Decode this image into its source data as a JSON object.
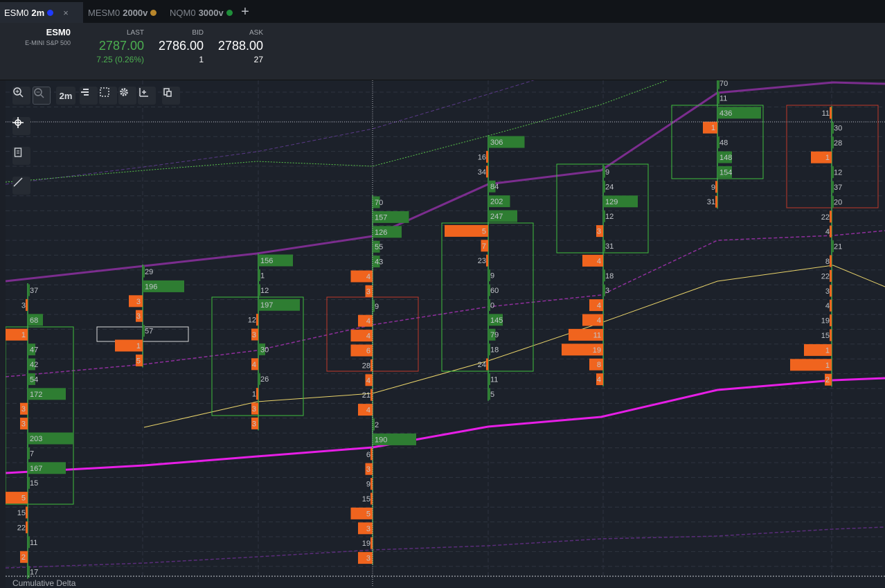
{
  "tabs": [
    {
      "symbol": "ESM0",
      "resolution": "2m",
      "dot_color": "#1f3bff",
      "active": true,
      "close": "×"
    },
    {
      "symbol": "MESM0",
      "resolution": "2000v",
      "dot_color": "#b8862b",
      "active": false
    },
    {
      "symbol": "NQM0",
      "resolution": "3000v",
      "dot_color": "#1f8f3a",
      "active": false
    }
  ],
  "new_tab_label": "+",
  "quote": {
    "symbol": "ESM0",
    "description": "E-MINI S&P 500",
    "last_label": "LAST",
    "last": "2787.00",
    "change": "7.25 (0.26%)",
    "bid_label": "BID",
    "bid": "2786.00",
    "bid_size": "1",
    "ask_label": "ASK",
    "ask": "2788.00",
    "ask_size": "27"
  },
  "toolbar": {
    "timeframe_label": "2m"
  },
  "colors": {
    "buy": "#2e7d32",
    "sell": "#f0641e",
    "up": "#4caf50",
    "accent_magenta": "#e61ee6",
    "vwap": "#7b2d8e"
  },
  "study_label": "Cumulative Delta",
  "chart_data": {
    "type": "footprint",
    "columns": [
      {
        "rows": [
          [
            "37",
            0,
            0
          ],
          [
            "3",
            1,
            0
          ],
          [
            "68",
            0,
            2
          ],
          [
            "1",
            1,
            3
          ],
          [
            "47",
            0,
            1
          ],
          [
            "42",
            0,
            1
          ],
          [
            "54",
            0,
            1
          ],
          [
            "172",
            0,
            5
          ],
          [
            "3",
            1,
            1
          ],
          [
            "3",
            1,
            1
          ],
          [
            "203",
            0,
            6
          ],
          [
            "7",
            0,
            0
          ],
          [
            "167",
            0,
            5
          ],
          [
            "15",
            0,
            0
          ],
          [
            "5",
            1,
            3
          ],
          [
            "15",
            1,
            0
          ],
          [
            "22",
            1,
            0
          ],
          [
            "11",
            0,
            0
          ],
          [
            "2",
            1,
            1
          ],
          [
            "17",
            0,
            0
          ]
        ]
      },
      {
        "rows": [
          [
            "29",
            0,
            0
          ],
          [
            "196",
            0,
            6
          ],
          [
            "3",
            1,
            2
          ],
          [
            "3",
            1,
            1
          ],
          [
            "57",
            0,
            0
          ],
          [
            "1",
            1,
            4
          ],
          [
            "5",
            1,
            1
          ]
        ]
      },
      {
        "rows": [
          [
            "156",
            0,
            5
          ],
          [
            "1",
            0,
            0
          ],
          [
            "12",
            0,
            0
          ],
          [
            "197",
            0,
            6
          ],
          [
            "12",
            1,
            0
          ],
          [
            "3",
            1,
            1
          ],
          [
            "30",
            0,
            1
          ],
          [
            "4",
            1,
            1
          ],
          [
            "26",
            0,
            0
          ],
          [
            "1",
            1,
            0
          ],
          [
            "3",
            1,
            1
          ],
          [
            "3",
            1,
            1
          ]
        ]
      },
      {
        "rows": [
          [
            "70",
            0,
            1
          ],
          [
            "157",
            0,
            5
          ],
          [
            "126",
            0,
            4
          ],
          [
            "55",
            0,
            1
          ],
          [
            "43",
            0,
            1
          ],
          [
            "4",
            1,
            3
          ],
          [
            "3",
            1,
            1
          ],
          [
            "9",
            0,
            0
          ],
          [
            "4",
            1,
            2
          ],
          [
            "4",
            1,
            3
          ],
          [
            "6",
            1,
            3
          ],
          [
            "28",
            1,
            0
          ],
          [
            "4",
            1,
            1
          ],
          [
            "21",
            1,
            0
          ],
          [
            "4",
            1,
            2
          ],
          [
            "2",
            0,
            0
          ],
          [
            "190",
            0,
            6
          ],
          [
            "6",
            1,
            0
          ],
          [
            "3",
            1,
            1
          ],
          [
            "9",
            1,
            0
          ],
          [
            "15",
            1,
            0
          ],
          [
            "5",
            1,
            3
          ],
          [
            "3",
            1,
            2
          ],
          [
            "19",
            1,
            0
          ],
          [
            "3",
            1,
            2
          ]
        ]
      },
      {
        "rows": [
          [
            "306",
            0,
            5
          ],
          [
            "16",
            1,
            0
          ],
          [
            "34",
            1,
            0
          ],
          [
            "84",
            0,
            1
          ],
          [
            "202",
            0,
            3
          ],
          [
            "247",
            0,
            4
          ],
          [
            "5",
            1,
            6
          ],
          [
            "7",
            1,
            1
          ],
          [
            "23",
            1,
            0
          ],
          [
            "9",
            0,
            0
          ],
          [
            "60",
            0,
            0
          ],
          [
            "0",
            0,
            0
          ],
          [
            "145",
            0,
            2
          ],
          [
            "79",
            0,
            1
          ],
          [
            "18",
            0,
            0
          ],
          [
            "24",
            1,
            0
          ],
          [
            "11",
            0,
            0
          ],
          [
            "5",
            0,
            0
          ]
        ]
      },
      {
        "rows": [
          [
            "9",
            0,
            0
          ],
          [
            "24",
            0,
            0
          ],
          [
            "129",
            0,
            5
          ],
          [
            "12",
            0,
            0
          ],
          [
            "3",
            1,
            1
          ],
          [
            "31",
            0,
            0
          ],
          [
            "4",
            1,
            3
          ],
          [
            "18",
            0,
            0
          ],
          [
            "3",
            0,
            0
          ],
          [
            "4",
            1,
            2
          ],
          [
            "4",
            1,
            3
          ],
          [
            "11",
            1,
            5
          ],
          [
            "19",
            1,
            6
          ],
          [
            "8",
            1,
            2
          ],
          [
            "4",
            1,
            1
          ]
        ]
      },
      {
        "rows": [
          [
            "70",
            0,
            0
          ],
          [
            "11",
            0,
            0
          ],
          [
            "436",
            0,
            6
          ],
          [
            "1",
            1,
            2
          ],
          [
            "48",
            0,
            0
          ],
          [
            "148",
            0,
            2
          ],
          [
            "154",
            0,
            2
          ],
          [
            "9",
            1,
            0
          ],
          [
            "31",
            1,
            0
          ]
        ]
      },
      {
        "rows": [
          [
            "11",
            1,
            0
          ],
          [
            "30",
            0,
            0
          ],
          [
            "28",
            0,
            0
          ],
          [
            "1",
            1,
            3
          ],
          [
            "12",
            0,
            0
          ],
          [
            "37",
            0,
            0
          ],
          [
            "20",
            0,
            0
          ],
          [
            "22",
            1,
            0
          ],
          [
            "4",
            1,
            0
          ],
          [
            "21",
            0,
            0
          ],
          [
            "8",
            1,
            0
          ],
          [
            "22",
            1,
            0
          ],
          [
            "3",
            1,
            0
          ],
          [
            "4",
            1,
            0
          ],
          [
            "19",
            1,
            0
          ],
          [
            "15",
            1,
            0
          ],
          [
            "1",
            1,
            4
          ],
          [
            "1",
            1,
            6
          ],
          [
            "2",
            1,
            1
          ]
        ]
      }
    ]
  }
}
